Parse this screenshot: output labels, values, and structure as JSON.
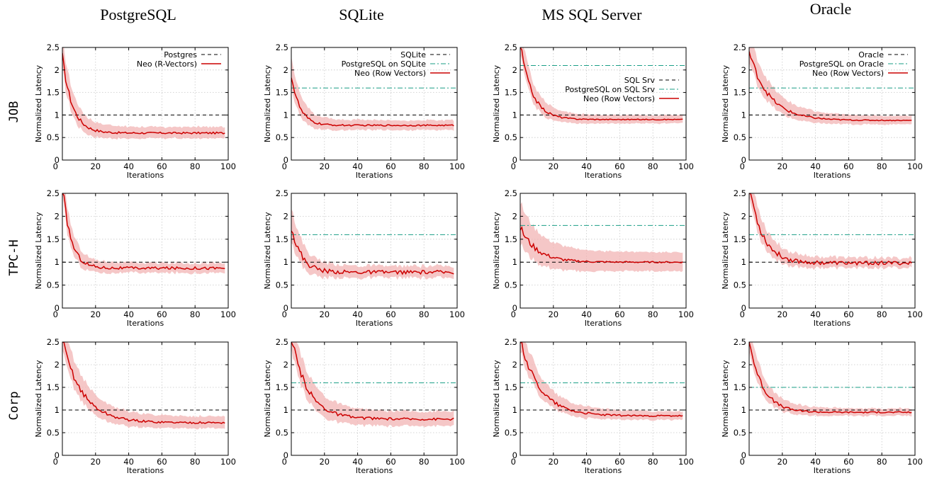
{
  "colors": {
    "neo": "#cc0000",
    "band": "#f2b4b4",
    "baseline": "#000000",
    "pg_port": "#1a9e86"
  },
  "columns": [
    "PostgreSQL",
    "SQLite",
    "MS SQL Server",
    "Oracle"
  ],
  "rows": [
    "JOB",
    "TPC-H",
    "Corp"
  ],
  "chart_data": [
    {
      "type": "line",
      "row": "JOB",
      "column": "PostgreSQL",
      "xlabel": "Iterations",
      "ylabel": "Normalized Latency",
      "xlim": [
        0,
        100
      ],
      "ylim": [
        0,
        2.5
      ],
      "xticks": [
        0,
        20,
        40,
        60,
        80,
        100
      ],
      "yticks": [
        0,
        0.5,
        1,
        1.5,
        2,
        2.5
      ],
      "grid": true,
      "legend": "top-right",
      "baseline": 1,
      "pg_line": null,
      "start": 2.3,
      "end": 0.6,
      "tau": 6,
      "band": 0.12,
      "noise": 0.02,
      "series": [
        {
          "name": "Postgres",
          "style": "baseline"
        },
        {
          "name": "Neo (R-Vectors)",
          "style": "neo"
        }
      ]
    },
    {
      "type": "line",
      "row": "JOB",
      "column": "SQLite",
      "xlabel": "Iterations",
      "ylabel": "Normalized Latency",
      "xlim": [
        0,
        100
      ],
      "ylim": [
        0,
        2.5
      ],
      "xticks": [
        0,
        20,
        40,
        60,
        80,
        100
      ],
      "yticks": [
        0,
        0.5,
        1,
        1.5,
        2,
        2.5
      ],
      "grid": true,
      "legend": "top-right",
      "baseline": 1,
      "pg_line": 1.6,
      "start": 1.9,
      "end": 0.77,
      "tau": 5,
      "band": 0.1,
      "noise": 0.015,
      "series": [
        {
          "name": "SQLite",
          "style": "baseline"
        },
        {
          "name": "PostgreSQL on SQLite",
          "style": "pg"
        },
        {
          "name": "Neo (Row Vectors)",
          "style": "neo"
        }
      ]
    },
    {
      "type": "line",
      "row": "JOB",
      "column": "MS SQL Server",
      "xlabel": "Iterations",
      "ylabel": "Normalized Latency",
      "xlim": [
        0,
        100
      ],
      "ylim": [
        0,
        2.5
      ],
      "xticks": [
        0,
        20,
        40,
        60,
        80,
        100
      ],
      "yticks": [
        0,
        0.5,
        1,
        1.5,
        2,
        2.5
      ],
      "grid": true,
      "legend": "center-right",
      "baseline": 1,
      "pg_line": 2.1,
      "start": 2.6,
      "end": 0.9,
      "tau": 7,
      "band": 0.08,
      "noise": 0.01,
      "series": [
        {
          "name": "SQL Srv",
          "style": "baseline"
        },
        {
          "name": "PostgreSQL on SQL Srv",
          "style": "pg"
        },
        {
          "name": "Neo (Row Vectors)",
          "style": "neo"
        }
      ]
    },
    {
      "type": "line",
      "row": "JOB",
      "column": "Oracle",
      "xlabel": "Iterations",
      "ylabel": "Normalized Latency",
      "xlim": [
        0,
        100
      ],
      "ylim": [
        0,
        2.5
      ],
      "xticks": [
        0,
        20,
        40,
        60,
        80,
        100
      ],
      "yticks": [
        0,
        0.5,
        1,
        1.5,
        2,
        2.5
      ],
      "grid": true,
      "legend": "top-right",
      "baseline": 1,
      "pg_line": 1.6,
      "start": 2.4,
      "end": 0.88,
      "tau": 12,
      "band": 0.08,
      "noise": 0.01,
      "series": [
        {
          "name": "Oracle",
          "style": "baseline"
        },
        {
          "name": "PostgreSQL on Oracle",
          "style": "pg"
        },
        {
          "name": "Neo (Row Vectors)",
          "style": "neo"
        }
      ]
    },
    {
      "type": "line",
      "row": "TPC-H",
      "column": "PostgreSQL",
      "xlabel": "Iterations",
      "ylabel": "Normalized Latency",
      "xlim": [
        0,
        100
      ],
      "ylim": [
        0,
        2.5
      ],
      "xticks": [
        0,
        20,
        40,
        60,
        80,
        100
      ],
      "yticks": [
        0,
        0.5,
        1,
        1.5,
        2,
        2.5
      ],
      "grid": true,
      "legend": "none",
      "baseline": 1,
      "pg_line": null,
      "start": 2.7,
      "end": 0.87,
      "tau": 5,
      "band": 0.1,
      "noise": 0.03,
      "series": []
    },
    {
      "type": "line",
      "row": "TPC-H",
      "column": "SQLite",
      "xlabel": "Iterations",
      "ylabel": "Normalized Latency",
      "xlim": [
        0,
        100
      ],
      "ylim": [
        0,
        2.5
      ],
      "xticks": [
        0,
        20,
        40,
        60,
        80,
        100
      ],
      "yticks": [
        0,
        0.5,
        1,
        1.5,
        2,
        2.5
      ],
      "grid": true,
      "legend": "none",
      "baseline": 1,
      "pg_line": 1.6,
      "start": 1.8,
      "end": 0.78,
      "tau": 6,
      "band": 0.12,
      "noise": 0.04,
      "series": []
    },
    {
      "type": "line",
      "row": "TPC-H",
      "column": "MS SQL Server",
      "xlabel": "Iterations",
      "ylabel": "Normalized Latency",
      "xlim": [
        0,
        100
      ],
      "ylim": [
        0,
        2.5
      ],
      "xticks": [
        0,
        20,
        40,
        60,
        80,
        100
      ],
      "yticks": [
        0,
        0.5,
        1,
        1.5,
        2,
        2.5
      ],
      "grid": true,
      "legend": "none",
      "baseline": 1,
      "pg_line": 1.8,
      "start": 1.75,
      "end": 1.0,
      "tau": 10,
      "band": 0.2,
      "noise": 0.015,
      "series": []
    },
    {
      "type": "line",
      "row": "TPC-H",
      "column": "Oracle",
      "xlabel": "Iterations",
      "ylabel": "Normalized Latency",
      "xlim": [
        0,
        100
      ],
      "ylim": [
        0,
        2.5
      ],
      "xticks": [
        0,
        20,
        40,
        60,
        80,
        100
      ],
      "yticks": [
        0,
        0.5,
        1,
        1.5,
        2,
        2.5
      ],
      "grid": true,
      "legend": "none",
      "baseline": 1,
      "pg_line": 1.6,
      "start": 2.7,
      "end": 0.98,
      "tau": 8,
      "band": 0.1,
      "noise": 0.04,
      "series": []
    },
    {
      "type": "line",
      "row": "Corp",
      "column": "PostgreSQL",
      "xlabel": "Iterations",
      "ylabel": "Normalized Latency",
      "xlim": [
        0,
        100
      ],
      "ylim": [
        0,
        2.5
      ],
      "xticks": [
        0,
        20,
        40,
        60,
        80,
        100
      ],
      "yticks": [
        0,
        0.5,
        1,
        1.5,
        2,
        2.5
      ],
      "grid": true,
      "legend": "none",
      "baseline": 1,
      "pg_line": null,
      "start": 2.55,
      "end": 0.72,
      "tau": 12,
      "band": 0.12,
      "noise": 0.02,
      "series": []
    },
    {
      "type": "line",
      "row": "Corp",
      "column": "SQLite",
      "xlabel": "Iterations",
      "ylabel": "Normalized Latency",
      "xlim": [
        0,
        100
      ],
      "ylim": [
        0,
        2.5
      ],
      "xticks": [
        0,
        20,
        40,
        60,
        80,
        100
      ],
      "yticks": [
        0,
        0.5,
        1,
        1.5,
        2,
        2.5
      ],
      "grid": true,
      "legend": "none",
      "baseline": 1,
      "pg_line": 1.6,
      "start": 2.6,
      "end": 0.8,
      "tau": 10,
      "band": 0.15,
      "noise": 0.025,
      "series": []
    },
    {
      "type": "line",
      "row": "Corp",
      "column": "MS SQL Server",
      "xlabel": "Iterations",
      "ylabel": "Normalized Latency",
      "xlim": [
        0,
        100
      ],
      "ylim": [
        0,
        2.5
      ],
      "xticks": [
        0,
        20,
        40,
        60,
        80,
        100
      ],
      "yticks": [
        0,
        0.5,
        1,
        1.5,
        2,
        2.5
      ],
      "grid": true,
      "legend": "none",
      "baseline": 1,
      "pg_line": 1.6,
      "start": 2.55,
      "end": 0.87,
      "tau": 12,
      "band": 0.08,
      "noise": 0.015,
      "series": []
    },
    {
      "type": "line",
      "row": "Corp",
      "column": "Oracle",
      "xlabel": "Iterations",
      "ylabel": "Normalized Latency",
      "xlim": [
        0,
        100
      ],
      "ylim": [
        0,
        2.5
      ],
      "xticks": [
        0,
        20,
        40,
        60,
        80,
        100
      ],
      "yticks": [
        0,
        0.5,
        1,
        1.5,
        2,
        2.5
      ],
      "grid": true,
      "legend": "none",
      "baseline": 1,
      "pg_line": 1.5,
      "start": 2.55,
      "end": 0.95,
      "tau": 8,
      "band": 0.07,
      "noise": 0.015,
      "series": []
    }
  ]
}
